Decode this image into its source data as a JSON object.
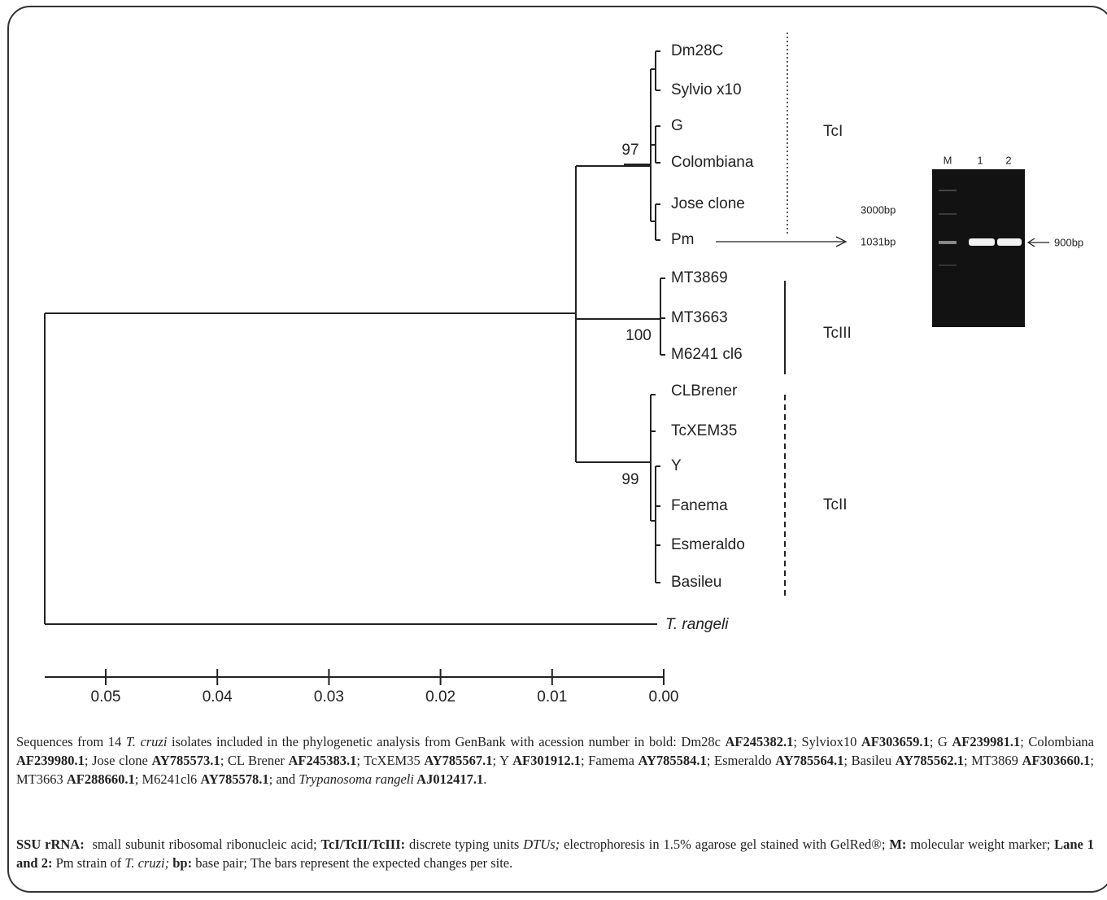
{
  "tree": {
    "leaves": [
      {
        "label": "Dm28C"
      },
      {
        "label": "Sylvio x10"
      },
      {
        "label": "G"
      },
      {
        "label": "Colombiana"
      },
      {
        "label": "Jose clone"
      },
      {
        "label": "Pm"
      },
      {
        "label": "MT3869"
      },
      {
        "label": "MT3663"
      },
      {
        "label": "M6241 cl6"
      },
      {
        "label": "CLBrener"
      },
      {
        "label": "TcXEM35"
      },
      {
        "label": "Y"
      },
      {
        "label": "Fanema"
      },
      {
        "label": "Esmeraldo"
      },
      {
        "label": "Basileu"
      },
      {
        "label": "T. rangeli",
        "italic": true
      }
    ],
    "bootstrap": [
      "97",
      "100",
      "99"
    ],
    "clades": [
      "TcI",
      "TcIII",
      "TcII"
    ],
    "scale_ticks": [
      0.05,
      0.04,
      0.03,
      0.02,
      0.01,
      {
        "value": 0,
        "label": "0.00"
      }
    ],
    "xlim": [
      0.056,
      0
    ]
  },
  "gel": {
    "lanes": [
      "M",
      "1",
      "2"
    ],
    "marker_top": "3000bp",
    "marker_band": "1031bp",
    "band": "900bp"
  },
  "caption": [
    [
      {
        "text": "Sequences from 14 "
      },
      {
        "text": "T. cruzi",
        "italic": true
      },
      {
        "text": " isolates included in the phylogenetic analysis from GenBank with acession number in bold: Dm28c "
      },
      {
        "text": "AF245382.1",
        "bold": true
      },
      {
        "text": "; Sylviox10 "
      },
      {
        "text": "AF303659.1",
        "bold": true
      },
      {
        "text": "; G "
      },
      {
        "text": "AF239981.1",
        "bold": true
      },
      {
        "text": "; Colombiana "
      },
      {
        "text": "AF239980.1",
        "bold": true
      },
      {
        "text": "; Jose clone "
      },
      {
        "text": "AY785573.1",
        "bold": true
      },
      {
        "text": "; CL Brener "
      },
      {
        "text": "AF245383.1",
        "bold": true
      },
      {
        "text": "; TcXEM35 "
      },
      {
        "text": "AY785567.1",
        "bold": true
      },
      {
        "text": "; Y "
      },
      {
        "text": "AF301912.1",
        "bold": true
      },
      {
        "text": "; Famema "
      },
      {
        "text": "AY785584.1",
        "bold": true
      },
      {
        "text": "; Esmeraldo "
      },
      {
        "text": "AY785564.1",
        "bold": true
      },
      {
        "text": "; Basileu "
      },
      {
        "text": "AY785562.1",
        "bold": true
      },
      {
        "text": "; MT3869 "
      },
      {
        "text": "AF303660.1",
        "bold": true
      },
      {
        "text": "; MT3663 "
      },
      {
        "text": "AF288660.1",
        "bold": true
      },
      {
        "text": "; M6241cl6 "
      },
      {
        "text": "AY785578.1",
        "bold": true
      },
      {
        "text": "; and "
      },
      {
        "text": "Trypanosoma rangeli",
        "italic": true
      },
      {
        "text": " AJ012417.1",
        "bold": true
      },
      {
        "text": "."
      }
    ],
    [
      {
        "text": "SSU rRNA:",
        "bold": true
      },
      {
        "text": "  small subunit ribosomal ribonucleic acid; "
      },
      {
        "text": "TcI/TcII/TcIII:",
        "bold": true
      },
      {
        "text": " discrete typing units "
      },
      {
        "text": "DTUs;",
        "italic": true
      },
      {
        "text": " electrophoresis in 1.5% agarose gel stained with GelRed®; "
      },
      {
        "text": "M:",
        "bold": true
      },
      {
        "text": " molecular weight marker; "
      },
      {
        "text": "Lane 1 and 2:",
        "bold": true
      },
      {
        "text": " Pm strain of "
      },
      {
        "text": "T. cruzi;",
        "italic": true
      },
      {
        "text": " bp:",
        "bold": true
      },
      {
        "text": " base pair; The bars represent the expected changes per site."
      }
    ]
  ]
}
